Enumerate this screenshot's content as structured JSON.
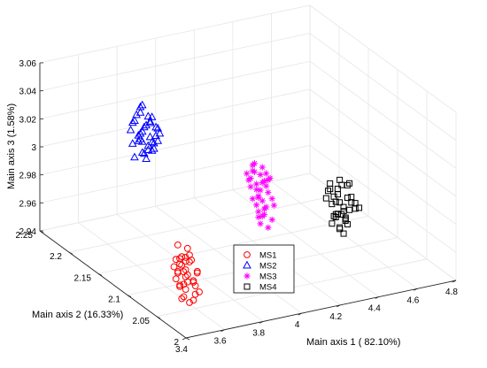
{
  "chart_data": {
    "type": "scatter",
    "projection": "3d",
    "title": "",
    "xlabel": "Main axis 1 ( 82.10%)",
    "ylabel": "Main axis 2 (16.33%)",
    "zlabel": "Main axis 3 (1.58%)",
    "xlim": [
      3.4,
      4.8
    ],
    "ylim": [
      2.0,
      2.25
    ],
    "zlim": [
      2.94,
      3.06
    ],
    "xticks": [
      "3.4",
      "3.6",
      "3.8",
      "4",
      "4.2",
      "4.4",
      "4.6",
      "4.8"
    ],
    "yticks": [
      "2",
      "2.05",
      "2.1",
      "2.15",
      "2.2",
      "2.25"
    ],
    "zticks": [
      "2.94",
      "2.96",
      "2.98",
      "3",
      "3.02",
      "3.04",
      "3.06"
    ],
    "grid": true,
    "legend": "center-bottom",
    "series": [
      {
        "name": "MS1",
        "marker": "circle",
        "color": "#ff0000",
        "points": [
          [
            3.56,
            2.05,
            2.96
          ],
          [
            3.58,
            2.06,
            2.965
          ],
          [
            3.55,
            2.05,
            2.955
          ],
          [
            3.6,
            2.06,
            2.97
          ],
          [
            3.57,
            2.07,
            2.96
          ],
          [
            3.54,
            2.05,
            2.95
          ],
          [
            3.59,
            2.04,
            2.955
          ],
          [
            3.56,
            2.06,
            2.975
          ],
          [
            3.61,
            2.05,
            2.965
          ],
          [
            3.58,
            2.07,
            2.95
          ],
          [
            3.55,
            2.06,
            2.97
          ],
          [
            3.57,
            2.05,
            2.945
          ],
          [
            3.6,
            2.07,
            2.96
          ],
          [
            3.53,
            2.06,
            2.96
          ],
          [
            3.59,
            2.06,
            2.98
          ],
          [
            3.56,
            2.04,
            2.95
          ],
          [
            3.62,
            2.06,
            2.955
          ],
          [
            3.58,
            2.05,
            2.975
          ],
          [
            3.55,
            2.07,
            2.965
          ],
          [
            3.57,
            2.06,
            2.955
          ],
          [
            3.6,
            2.05,
            2.95
          ],
          [
            3.56,
            2.07,
            2.97
          ],
          [
            3.58,
            2.06,
            2.96
          ],
          [
            3.54,
            2.06,
            2.965
          ],
          [
            3.61,
            2.07,
            2.97
          ],
          [
            3.57,
            2.04,
            2.96
          ],
          [
            3.59,
            2.07,
            2.965
          ],
          [
            3.55,
            2.05,
            2.975
          ],
          [
            3.58,
            2.04,
            2.97
          ],
          [
            3.56,
            2.06,
            2.945
          ],
          [
            3.6,
            2.06,
            2.975
          ],
          [
            3.57,
            2.07,
            2.98
          ],
          [
            3.59,
            2.05,
            2.96
          ],
          [
            3.55,
            2.06,
            2.955
          ],
          [
            3.58,
            2.07,
            2.97
          ],
          [
            3.56,
            2.05,
            2.965
          ]
        ]
      },
      {
        "name": "MS2",
        "marker": "triangle",
        "color": "#0000ff",
        "points": [
          [
            3.78,
            2.2,
            3.0
          ],
          [
            3.8,
            2.21,
            3.01
          ],
          [
            3.82,
            2.2,
            3.02
          ],
          [
            3.79,
            2.22,
            3.015
          ],
          [
            3.84,
            2.21,
            3.0
          ],
          [
            3.81,
            2.19,
            3.005
          ],
          [
            3.77,
            2.21,
            3.02
          ],
          [
            3.83,
            2.22,
            3.025
          ],
          [
            3.8,
            2.2,
            2.995
          ],
          [
            3.85,
            2.2,
            3.01
          ],
          [
            3.79,
            2.19,
            3.025
          ],
          [
            3.82,
            2.22,
            3.005
          ],
          [
            3.78,
            2.22,
            3.01
          ],
          [
            3.84,
            2.19,
            3.015
          ],
          [
            3.81,
            2.21,
            3.03
          ],
          [
            3.86,
            2.21,
            3.02
          ],
          [
            3.8,
            2.22,
            2.99
          ],
          [
            3.83,
            2.2,
            3.0
          ],
          [
            3.79,
            2.21,
            3.005
          ],
          [
            3.82,
            2.19,
            3.02
          ],
          [
            3.85,
            2.22,
            3.01
          ],
          [
            3.78,
            2.2,
            3.015
          ],
          [
            3.81,
            2.2,
            3.025
          ],
          [
            3.84,
            2.2,
            3.005
          ],
          [
            3.8,
            2.19,
            3.01
          ],
          [
            3.83,
            2.21,
            3.015
          ],
          [
            3.77,
            2.2,
            3.01
          ],
          [
            3.82,
            2.21,
            2.995
          ],
          [
            3.86,
            2.2,
            3.015
          ],
          [
            3.79,
            2.22,
            3.0
          ],
          [
            3.81,
            2.22,
            3.02
          ],
          [
            3.84,
            2.22,
            3.0
          ],
          [
            3.8,
            2.21,
            3.025
          ],
          [
            3.83,
            2.19,
            3.01
          ],
          [
            3.78,
            2.19,
            3.005
          ],
          [
            3.82,
            2.2,
            3.01
          ]
        ]
      },
      {
        "name": "MS3",
        "marker": "asterisk",
        "color": "#ff00ff",
        "points": [
          [
            4.2,
            2.14,
            2.975
          ],
          [
            4.22,
            2.15,
            2.98
          ],
          [
            4.21,
            2.13,
            2.97
          ],
          [
            4.23,
            2.14,
            2.985
          ],
          [
            4.2,
            2.15,
            2.99
          ],
          [
            4.24,
            2.13,
            2.975
          ],
          [
            4.22,
            2.14,
            2.96
          ],
          [
            4.19,
            2.14,
            2.98
          ],
          [
            4.23,
            2.15,
            2.97
          ],
          [
            4.21,
            2.15,
            2.995
          ],
          [
            4.25,
            2.14,
            2.985
          ],
          [
            4.2,
            2.13,
            2.965
          ],
          [
            4.22,
            2.13,
            2.98
          ],
          [
            4.24,
            2.15,
            2.975
          ],
          [
            4.21,
            2.14,
            2.955
          ],
          [
            4.23,
            2.13,
            2.99
          ],
          [
            4.19,
            2.15,
            2.985
          ],
          [
            4.22,
            2.15,
            2.965
          ],
          [
            4.24,
            2.14,
            2.99
          ],
          [
            4.2,
            2.14,
            2.96
          ],
          [
            4.25,
            2.15,
            2.98
          ],
          [
            4.21,
            2.13,
            2.985
          ],
          [
            4.23,
            2.14,
            2.965
          ],
          [
            4.22,
            2.16,
            2.975
          ],
          [
            4.2,
            2.16,
            2.985
          ],
          [
            4.24,
            2.13,
            2.96
          ],
          [
            4.21,
            2.16,
            2.98
          ],
          [
            4.23,
            2.16,
            2.99
          ],
          [
            4.22,
            2.14,
            2.995
          ],
          [
            4.19,
            2.13,
            2.975
          ],
          [
            4.25,
            2.13,
            2.97
          ],
          [
            4.2,
            2.15,
            2.97
          ],
          [
            4.24,
            2.16,
            2.985
          ],
          [
            4.21,
            2.14,
            2.99
          ],
          [
            4.23,
            2.15,
            2.96
          ],
          [
            4.22,
            2.13,
            2.955
          ]
        ]
      },
      {
        "name": "MS4",
        "marker": "square",
        "color": "#000000",
        "points": [
          [
            4.46,
            2.09,
            2.97
          ],
          [
            4.48,
            2.1,
            2.975
          ],
          [
            4.5,
            2.09,
            2.965
          ],
          [
            4.47,
            2.11,
            2.98
          ],
          [
            4.52,
            2.1,
            2.97
          ],
          [
            4.49,
            2.08,
            2.975
          ],
          [
            4.45,
            2.1,
            2.985
          ],
          [
            4.51,
            2.11,
            2.96
          ],
          [
            4.48,
            2.08,
            2.965
          ],
          [
            4.53,
            2.09,
            2.98
          ],
          [
            4.46,
            2.11,
            2.975
          ],
          [
            4.5,
            2.1,
            2.99
          ],
          [
            4.47,
            2.09,
            2.96
          ],
          [
            4.52,
            2.08,
            2.975
          ],
          [
            4.49,
            2.11,
            2.97
          ],
          [
            4.54,
            2.1,
            2.985
          ],
          [
            4.45,
            2.09,
            2.97
          ],
          [
            4.51,
            2.09,
            2.98
          ],
          [
            4.48,
            2.11,
            2.985
          ],
          [
            4.5,
            2.08,
            2.98
          ],
          [
            4.46,
            2.08,
            2.975
          ],
          [
            4.53,
            2.11,
            2.97
          ],
          [
            4.47,
            2.1,
            2.965
          ],
          [
            4.52,
            2.09,
            2.99
          ],
          [
            4.49,
            2.09,
            2.955
          ],
          [
            4.5,
            2.11,
            2.975
          ],
          [
            4.55,
            2.09,
            2.975
          ],
          [
            4.48,
            2.09,
            2.99
          ],
          [
            4.51,
            2.1,
            2.965
          ],
          [
            4.46,
            2.1,
            2.96
          ],
          [
            4.53,
            2.1,
            2.96
          ],
          [
            4.49,
            2.1,
            2.98
          ],
          [
            4.52,
            2.11,
            2.98
          ],
          [
            4.47,
            2.08,
            2.97
          ],
          [
            4.54,
            2.08,
            2.975
          ],
          [
            4.5,
            2.1,
            2.955
          ]
        ]
      }
    ]
  }
}
